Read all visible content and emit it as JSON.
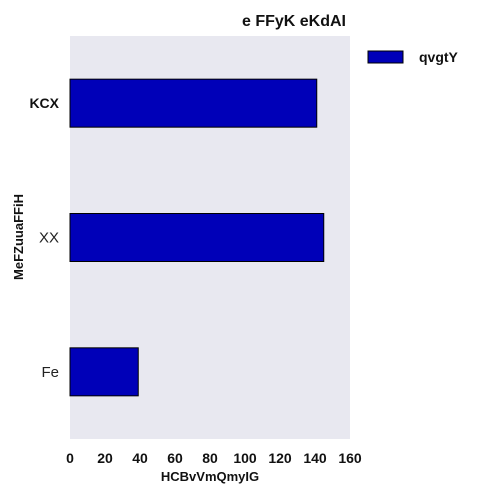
{
  "chart_data": {
    "type": "bar",
    "orientation": "horizontal",
    "title": "e FFyK eKdAI",
    "xlabel": "HCBvVmQmyIG",
    "ylabel": "MeFZuuaFFiH",
    "categories": [
      "KCX",
      "XX",
      "Fe"
    ],
    "series": [
      {
        "name": "qvgtY",
        "values": [
          141,
          145,
          39
        ]
      }
    ],
    "xlim": [
      0,
      160
    ],
    "xticks": [
      0,
      20,
      40,
      60,
      80,
      100,
      120,
      140,
      160
    ],
    "grid": false,
    "legend": "top-right",
    "colors": {
      "bar": "#0000b8",
      "plot_bg": "#e8e8f0",
      "bar_edge": "#000000"
    }
  }
}
